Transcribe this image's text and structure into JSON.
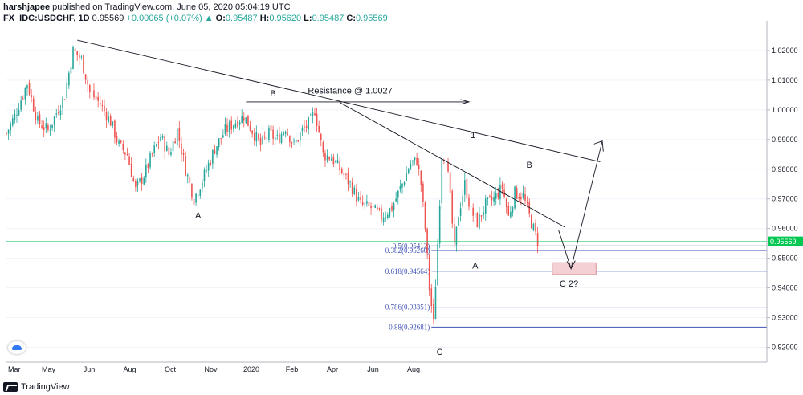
{
  "header": {
    "author": "harshjapee",
    "published_text": "published on TradingView.com, June 05, 2020 05:04:19 UTC",
    "symbol": "FX_IDC:USDCHF, 1D",
    "price": "0.95569",
    "change": "+0.00065 (+0.07%)",
    "o_label": "O:",
    "o_value": "0.95487",
    "h_label": "H:",
    "h_value": "0.95620",
    "l_label": "L:",
    "l_value": "0.95487",
    "c_label": "C:",
    "c_value": "0.95569"
  },
  "footer": {
    "brand": "TradingView"
  },
  "colors": {
    "up": "#26a69a",
    "down": "#ef5350",
    "fib": "#3f51b5",
    "current": "#00c853",
    "zone": "#f4cfd3"
  },
  "chart_data": {
    "type": "candlestick",
    "ylim": [
      0.915,
      1.03
    ],
    "y_ticks": [
      "1.02000",
      "1.01000",
      "1.00000",
      "0.99000",
      "0.98000",
      "0.97000",
      "0.96000",
      "0.95000",
      "0.94000",
      "0.93000",
      "0.92000"
    ],
    "x_ticks": [
      "Mar",
      "May",
      "Jun",
      "Aug",
      "Oct",
      "Nov",
      "2020",
      "Feb",
      "Apr",
      "Jun",
      "Aug"
    ],
    "current_price": {
      "value": 0.95569,
      "label": "0.95569"
    },
    "fib_levels": [
      {
        "ratio": "0.382",
        "price": "0.95260",
        "label": "0.382(0.95260)"
      },
      {
        "ratio": "0.5",
        "price": "0.95412",
        "label": "0.5(0.95412)"
      },
      {
        "ratio": "0.618",
        "price": "0.94564",
        "label": "0.618(0.94564)"
      },
      {
        "ratio": "0.786",
        "price": "0.93351",
        "label": "0.786(0.93351)"
      },
      {
        "ratio": "0.88",
        "price": "0.92681",
        "label": "0.88(0.92681)"
      }
    ],
    "annotations": [
      "Resistance @ 1.0027",
      "B",
      "A",
      "1",
      "B",
      "A",
      "C",
      "C 2?"
    ],
    "anchors": [
      {
        "t": 0,
        "p": 0.992
      },
      {
        "t": 4,
        "p": 0.998
      },
      {
        "t": 10,
        "p": 1.009
      },
      {
        "t": 15,
        "p": 0.996
      },
      {
        "t": 20,
        "p": 0.993
      },
      {
        "t": 28,
        "p": 1.005
      },
      {
        "t": 32,
        "p": 1.02
      },
      {
        "t": 36,
        "p": 1.017
      },
      {
        "t": 40,
        "p": 1.006
      },
      {
        "t": 45,
        "p": 1.002
      },
      {
        "t": 50,
        "p": 0.996
      },
      {
        "t": 54,
        "p": 0.988
      },
      {
        "t": 58,
        "p": 0.985
      },
      {
        "t": 62,
        "p": 0.973
      },
      {
        "t": 66,
        "p": 0.978
      },
      {
        "t": 70,
        "p": 0.985
      },
      {
        "t": 74,
        "p": 0.991
      },
      {
        "t": 78,
        "p": 0.985
      },
      {
        "t": 82,
        "p": 0.993
      },
      {
        "t": 86,
        "p": 0.98
      },
      {
        "t": 90,
        "p": 0.97
      },
      {
        "t": 95,
        "p": 0.978
      },
      {
        "t": 100,
        "p": 0.987
      },
      {
        "t": 105,
        "p": 0.993
      },
      {
        "t": 110,
        "p": 0.996
      },
      {
        "t": 114,
        "p": 0.998
      },
      {
        "t": 118,
        "p": 0.993
      },
      {
        "t": 122,
        "p": 0.988
      },
      {
        "t": 126,
        "p": 0.992
      },
      {
        "t": 130,
        "p": 0.99
      },
      {
        "t": 134,
        "p": 0.994
      },
      {
        "t": 138,
        "p": 0.988
      },
      {
        "t": 142,
        "p": 0.993
      },
      {
        "t": 146,
        "p": 0.996
      },
      {
        "t": 148,
        "p": 1.0
      },
      {
        "t": 152,
        "p": 0.985
      },
      {
        "t": 156,
        "p": 0.984
      },
      {
        "t": 160,
        "p": 0.98
      },
      {
        "t": 165,
        "p": 0.975
      },
      {
        "t": 170,
        "p": 0.968
      },
      {
        "t": 175,
        "p": 0.967
      },
      {
        "t": 180,
        "p": 0.964
      },
      {
        "t": 185,
        "p": 0.967
      },
      {
        "t": 190,
        "p": 0.975
      },
      {
        "t": 194,
        "p": 0.982
      },
      {
        "t": 197,
        "p": 0.983
      },
      {
        "t": 199,
        "p": 0.975
      },
      {
        "t": 201,
        "p": 0.96
      },
      {
        "t": 203,
        "p": 0.94
      },
      {
        "t": 205,
        "p": 0.928
      },
      {
        "t": 207,
        "p": 0.955
      },
      {
        "t": 209,
        "p": 0.985
      },
      {
        "t": 211,
        "p": 0.985
      },
      {
        "t": 213,
        "p": 0.97
      },
      {
        "t": 215,
        "p": 0.953
      },
      {
        "t": 217,
        "p": 0.965
      },
      {
        "t": 220,
        "p": 0.975
      },
      {
        "t": 223,
        "p": 0.966
      },
      {
        "t": 226,
        "p": 0.962
      },
      {
        "t": 230,
        "p": 0.968
      },
      {
        "t": 234,
        "p": 0.97
      },
      {
        "t": 238,
        "p": 0.974
      },
      {
        "t": 241,
        "p": 0.964
      },
      {
        "t": 244,
        "p": 0.972
      },
      {
        "t": 248,
        "p": 0.971
      },
      {
        "t": 252,
        "p": 0.962
      },
      {
        "t": 255,
        "p": 0.9557
      }
    ]
  }
}
